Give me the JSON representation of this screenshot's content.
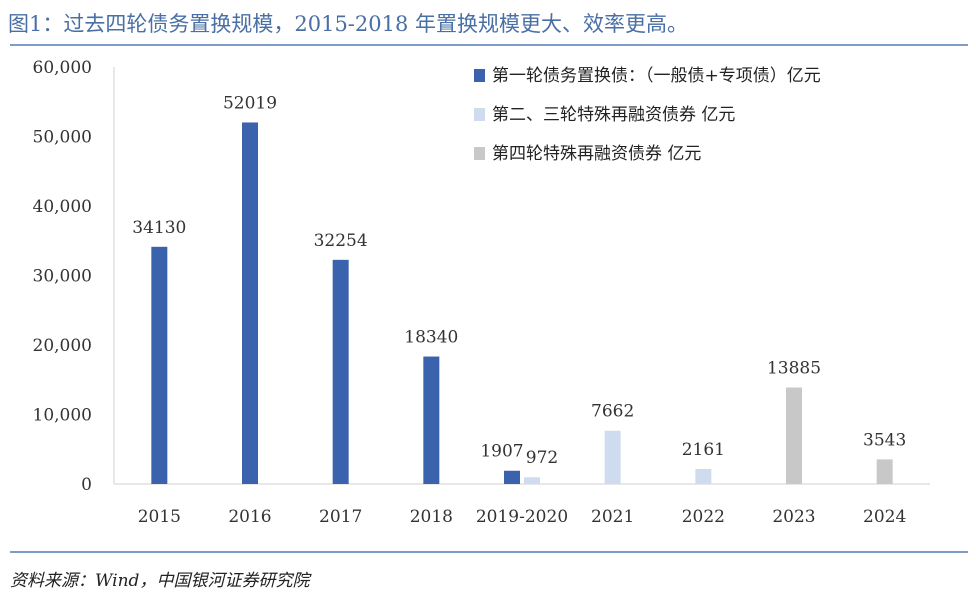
{
  "figure": {
    "title": "图1：过去四轮债务置换规模，2015-2018 年置换规模更大、效率更高。",
    "source": "资料来源：Wind，中国银河证券研究院"
  },
  "chart_data": {
    "type": "bar",
    "title": "",
    "xlabel": "",
    "ylabel": "",
    "ylim": [
      0,
      60000
    ],
    "yticks": [
      0,
      10000,
      20000,
      30000,
      40000,
      50000,
      60000
    ],
    "ytick_labels": [
      "0",
      "10,000",
      "20,000",
      "30,000",
      "40,000",
      "50,000",
      "60,000"
    ],
    "categories": [
      "2015",
      "2016",
      "2017",
      "2018",
      "2019-2020",
      "2021",
      "2022",
      "2023",
      "2024"
    ],
    "grid": false,
    "legend_position": "top-right",
    "series": [
      {
        "name": "第一轮债务置换债：（一般债+专项债）亿元",
        "color": "#3a62ad",
        "values": [
          34130,
          52019,
          32254,
          18340,
          1907,
          null,
          null,
          null,
          null
        ]
      },
      {
        "name": "第二、三轮特殊再融资债券 亿元",
        "color": "#cfdcf0",
        "values": [
          null,
          null,
          null,
          null,
          972,
          7662,
          2161,
          null,
          null
        ]
      },
      {
        "name": "第四轮特殊再融资债券 亿元",
        "color": "#c8c8c8",
        "values": [
          null,
          null,
          null,
          null,
          null,
          null,
          null,
          13885,
          3543
        ]
      }
    ]
  }
}
